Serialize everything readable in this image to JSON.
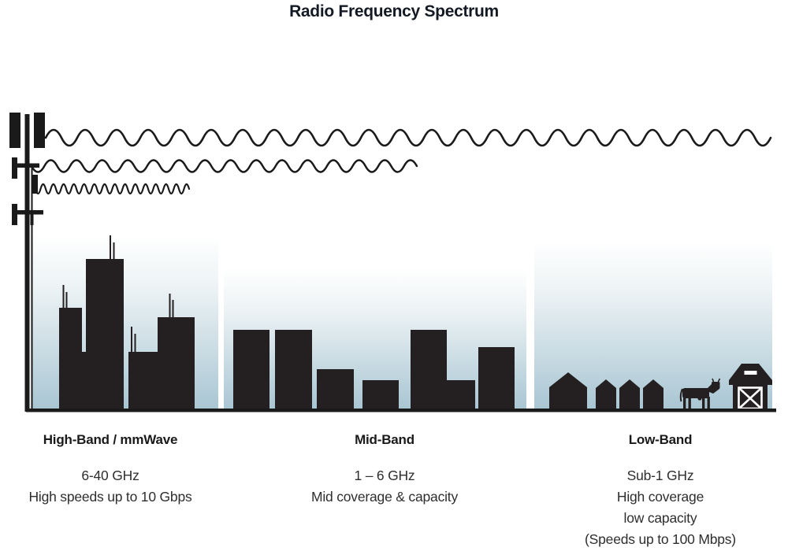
{
  "title": "Radio Frequency Spectrum",
  "bands": [
    {
      "id": "high",
      "heading": "High-Band / mmWave",
      "lines": [
        "6-40 GHz",
        "High speeds up to 10 Gbps"
      ]
    },
    {
      "id": "mid",
      "heading": "Mid-Band",
      "lines": [
        "1 – 6 GHz",
        "Mid coverage & capacity"
      ]
    },
    {
      "id": "low",
      "heading": "Sub-1 GHz",
      "heading_label": "Low-Band",
      "lines": [
        "Sub-1 GHz",
        "High coverage",
        "low capacity",
        "(Speeds up to 100 Mbps)"
      ]
    }
  ],
  "icons": {
    "cell_tower": "cell-tower-icon",
    "wave_long": "low-frequency-long-wave-icon",
    "wave_medium": "mid-frequency-medium-wave-icon",
    "wave_short": "high-frequency-short-wave-icon",
    "city_skyline": "city-skyscrapers-icon",
    "suburb_skyline": "mid-rise-buildings-icon",
    "rural_houses": "small-houses-icon",
    "cow": "cow-icon",
    "barn": "barn-icon"
  },
  "colors": {
    "ink": "#1f1b1c",
    "building": "#241f20",
    "sky_bottom": "#a9c6d3",
    "title_text": "#141a24",
    "body_text": "#2e2e2e"
  }
}
